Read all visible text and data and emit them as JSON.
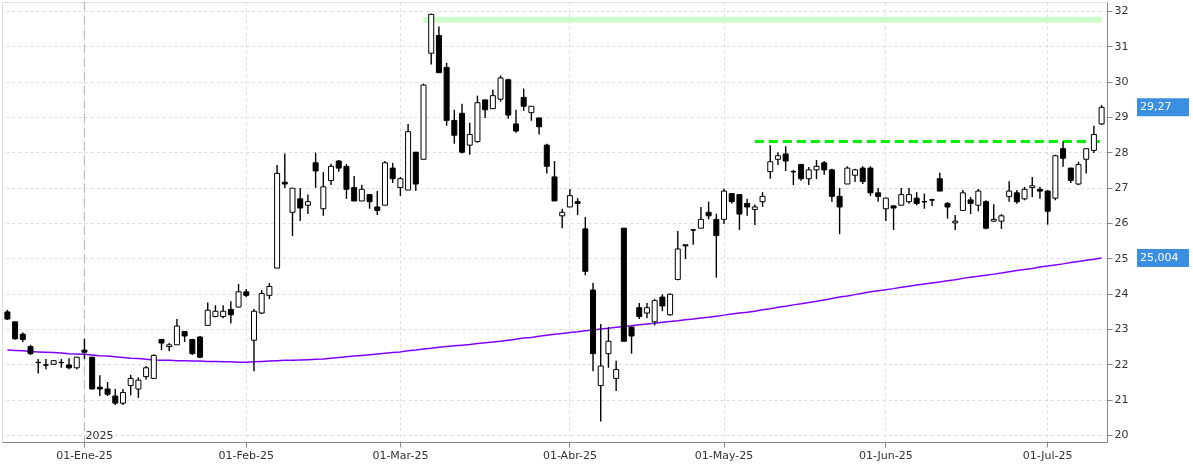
{
  "chart_data": {
    "type": "candlestick",
    "categories": [
      null,
      null,
      null,
      null,
      null,
      null,
      null,
      null,
      null,
      null,
      "01-Ene-25",
      null,
      null,
      null,
      null,
      null,
      null,
      null,
      null,
      null,
      null,
      null,
      null,
      null,
      null,
      null,
      null,
      null,
      null,
      null,
      null,
      "01-Feb-25",
      null,
      null,
      null,
      null,
      null,
      null,
      null,
      null,
      null,
      null,
      null,
      null,
      null,
      null,
      null,
      null,
      null,
      null,
      null,
      "01-Mar-25",
      null,
      null,
      null,
      null,
      null,
      null,
      null,
      null,
      null,
      null,
      null,
      null,
      null,
      null,
      null,
      null,
      null,
      null,
      null,
      null,
      null,
      "01-Abr-25",
      null,
      null,
      null,
      null,
      null,
      null,
      null,
      null,
      null,
      null,
      null,
      null,
      null,
      null,
      null,
      null,
      null,
      null,
      null,
      "01-May-25",
      null,
      null,
      null,
      null,
      null,
      null,
      null,
      null,
      null,
      null,
      null,
      null,
      null,
      null,
      null,
      null,
      null,
      null,
      null,
      null,
      "01-Jun-25",
      null,
      null,
      null,
      null,
      null,
      null,
      null,
      null,
      null,
      null,
      null,
      null,
      null,
      null,
      null,
      null,
      null,
      null,
      null,
      null,
      "01-Jul-25",
      null,
      null,
      null,
      null,
      null,
      null,
      null
    ],
    "ohlc": [
      [
        23.48,
        23.54,
        23.25,
        23.28
      ],
      [
        23.2,
        23.2,
        22.7,
        22.72
      ],
      [
        22.85,
        22.9,
        22.63,
        22.7
      ],
      [
        22.5,
        22.55,
        22.26,
        22.3
      ],
      [
        22.05,
        22.15,
        21.74,
        22.05
      ],
      [
        21.98,
        22.15,
        21.86,
        21.98
      ],
      [
        22.0,
        22.12,
        21.98,
        22.1
      ],
      [
        22.05,
        22.15,
        21.9,
        22.05
      ],
      [
        21.98,
        22.17,
        21.86,
        21.9
      ],
      [
        21.9,
        22.2,
        21.86,
        22.2
      ],
      [
        22.4,
        22.72,
        22.15,
        22.34
      ],
      [
        22.2,
        22.2,
        21.29,
        21.3
      ],
      [
        21.35,
        21.69,
        21.1,
        21.3
      ],
      [
        21.3,
        21.5,
        21.1,
        21.15
      ],
      [
        21.1,
        21.3,
        20.85,
        20.9
      ],
      [
        20.9,
        21.3,
        20.85,
        21.2
      ],
      [
        21.4,
        21.7,
        21.12,
        21.6
      ],
      [
        21.3,
        21.63,
        21.05,
        21.55
      ],
      [
        21.65,
        21.95,
        21.57,
        21.9
      ],
      [
        21.6,
        22.28,
        21.6,
        22.25
      ],
      [
        22.7,
        22.72,
        22.4,
        22.6
      ],
      [
        22.5,
        22.6,
        22.37,
        22.55
      ],
      [
        22.55,
        23.28,
        22.55,
        23.08
      ],
      [
        22.93,
        22.93,
        22.63,
        22.8
      ],
      [
        22.7,
        22.72,
        22.26,
        22.3
      ],
      [
        22.77,
        22.8,
        22.17,
        22.2
      ],
      [
        23.1,
        23.75,
        23.1,
        23.53
      ],
      [
        23.35,
        23.67,
        23.33,
        23.5
      ],
      [
        23.35,
        23.67,
        23.3,
        23.5
      ],
      [
        23.55,
        23.78,
        23.15,
        23.4
      ],
      [
        23.62,
        24.27,
        23.61,
        24.05
      ],
      [
        24.05,
        24.13,
        23.9,
        23.95
      ],
      [
        22.68,
        23.56,
        21.8,
        23.5
      ],
      [
        23.45,
        24.1,
        23.42,
        24.0
      ],
      [
        23.95,
        24.3,
        23.84,
        24.2
      ],
      [
        24.72,
        27.64,
        24.72,
        27.4
      ],
      [
        27.15,
        27.96,
        26.99,
        27.1
      ],
      [
        26.3,
        26.99,
        25.63,
        26.98
      ],
      [
        26.68,
        26.99,
        26.05,
        26.42
      ],
      [
        26.5,
        26.8,
        26.25,
        26.6
      ],
      [
        27.7,
        27.99,
        26.99,
        27.47
      ],
      [
        26.4,
        27.44,
        26.2,
        27.02
      ],
      [
        27.2,
        27.67,
        27.07,
        27.6
      ],
      [
        27.75,
        27.78,
        27.45,
        27.55
      ],
      [
        27.6,
        27.67,
        26.68,
        26.95
      ],
      [
        27.0,
        27.33,
        26.62,
        26.62
      ],
      [
        26.62,
        27.08,
        26.62,
        26.95
      ],
      [
        26.8,
        26.82,
        26.4,
        26.6
      ],
      [
        26.45,
        26.9,
        26.22,
        26.35
      ],
      [
        26.5,
        27.75,
        26.5,
        27.7
      ],
      [
        27.55,
        27.7,
        27.13,
        27.25
      ],
      [
        27.0,
        27.3,
        26.76,
        27.25
      ],
      [
        26.93,
        28.8,
        26.93,
        28.58
      ],
      [
        28.0,
        28.0,
        26.9,
        27.1
      ],
      [
        27.8,
        29.94,
        27.8,
        29.9
      ],
      [
        30.8,
        31.92,
        30.48,
        31.9
      ],
      [
        31.3,
        31.56,
        30.25,
        30.25
      ],
      [
        30.4,
        30.53,
        28.75,
        28.9
      ],
      [
        28.9,
        29.2,
        28.24,
        28.48
      ],
      [
        29.1,
        29.37,
        27.96,
        28.0
      ],
      [
        28.2,
        28.83,
        27.93,
        28.5
      ],
      [
        28.3,
        29.6,
        28.27,
        29.4
      ],
      [
        29.48,
        29.48,
        28.97,
        29.2
      ],
      [
        29.23,
        29.77,
        29.23,
        29.6
      ],
      [
        29.5,
        30.17,
        29.43,
        30.1
      ],
      [
        30.05,
        30.08,
        28.95,
        29.05
      ],
      [
        28.8,
        29.2,
        28.55,
        28.6
      ],
      [
        29.55,
        29.8,
        29.17,
        29.3
      ],
      [
        29.12,
        29.3,
        28.89,
        29.3
      ],
      [
        28.97,
        28.97,
        28.5,
        28.72
      ],
      [
        28.2,
        28.24,
        27.4,
        27.6
      ],
      [
        27.3,
        27.75,
        26.62,
        26.62
      ],
      [
        26.2,
        26.4,
        25.85,
        26.3
      ],
      [
        26.45,
        26.96,
        26.45,
        26.77
      ],
      [
        26.6,
        26.7,
        26.22,
        26.55
      ],
      [
        25.83,
        26.17,
        24.52,
        24.63
      ],
      [
        24.1,
        24.3,
        21.8,
        22.3
      ],
      [
        21.4,
        23.14,
        20.38,
        21.95
      ],
      [
        22.3,
        23.05,
        21.9,
        22.65
      ],
      [
        21.6,
        22.1,
        21.24,
        21.85
      ],
      [
        25.85,
        25.85,
        22.65,
        22.65
      ],
      [
        23.05,
        23.07,
        22.3,
        22.8
      ],
      [
        23.6,
        23.73,
        23.28,
        23.35
      ],
      [
        23.45,
        23.73,
        23.3,
        23.6
      ],
      [
        23.2,
        23.85,
        23.1,
        23.8
      ],
      [
        23.9,
        23.98,
        23.5,
        23.65
      ],
      [
        23.4,
        24.0,
        23.37,
        23.98
      ],
      [
        24.4,
        25.77,
        24.38,
        25.26
      ],
      [
        25.38,
        25.38,
        24.98,
        25.35
      ],
      [
        25.8,
        25.83,
        25.38,
        25.8
      ],
      [
        25.85,
        26.45,
        25.85,
        26.1
      ],
      [
        26.3,
        26.6,
        26.1,
        26.2
      ],
      [
        26.1,
        26.26,
        24.45,
        25.64
      ],
      [
        26.1,
        26.97,
        25.97,
        26.9
      ],
      [
        26.83,
        26.83,
        26.55,
        26.6
      ],
      [
        26.8,
        26.8,
        25.8,
        26.25
      ],
      [
        26.55,
        26.68,
        26.2,
        26.45
      ],
      [
        26.38,
        26.52,
        25.94,
        26.45
      ],
      [
        26.6,
        26.87,
        26.45,
        26.75
      ],
      [
        27.45,
        28.2,
        27.25,
        27.73
      ],
      [
        27.8,
        28.0,
        27.64,
        27.9
      ],
      [
        27.95,
        28.17,
        27.47,
        27.75
      ],
      [
        27.45,
        27.5,
        27.07,
        27.45
      ],
      [
        27.65,
        27.67,
        27.19,
        27.25
      ],
      [
        27.25,
        27.58,
        27.07,
        27.5
      ],
      [
        27.5,
        27.78,
        27.24,
        27.6
      ],
      [
        27.7,
        27.75,
        27.36,
        27.5
      ],
      [
        27.5,
        27.53,
        26.6,
        26.75
      ],
      [
        26.75,
        26.99,
        25.68,
        26.45
      ],
      [
        27.1,
        27.6,
        27.1,
        27.55
      ],
      [
        27.35,
        27.53,
        27.16,
        27.5
      ],
      [
        27.55,
        27.6,
        27.1,
        27.17
      ],
      [
        27.55,
        27.6,
        26.76,
        26.85
      ],
      [
        26.85,
        26.99,
        26.6,
        26.75
      ],
      [
        26.4,
        26.71,
        26.05,
        26.7
      ],
      [
        26.48,
        26.5,
        25.8,
        26.42
      ],
      [
        26.5,
        26.99,
        26.5,
        26.8
      ],
      [
        26.6,
        26.99,
        26.54,
        26.8
      ],
      [
        26.7,
        26.87,
        26.5,
        26.55
      ],
      [
        26.6,
        26.83,
        26.4,
        26.6
      ],
      [
        26.65,
        26.68,
        26.48,
        26.65
      ],
      [
        27.25,
        27.42,
        26.9,
        26.9
      ],
      [
        26.55,
        26.59,
        26.12,
        26.45
      ],
      [
        26.0,
        26.22,
        25.8,
        26.05
      ],
      [
        26.35,
        26.93,
        26.35,
        26.85
      ],
      [
        26.65,
        26.73,
        26.25,
        26.55
      ],
      [
        26.5,
        26.96,
        26.33,
        26.9
      ],
      [
        26.6,
        26.64,
        25.82,
        25.85
      ],
      [
        26.05,
        26.53,
        26.03,
        26.1
      ],
      [
        26.05,
        26.25,
        25.83,
        26.2
      ],
      [
        26.75,
        27.18,
        26.6,
        26.9
      ],
      [
        26.85,
        26.93,
        26.54,
        26.6
      ],
      [
        26.68,
        27.02,
        26.64,
        26.95
      ],
      [
        27.0,
        27.3,
        26.73,
        27.05
      ],
      [
        26.95,
        27.02,
        26.68,
        26.9
      ],
      [
        26.9,
        26.93,
        25.95,
        26.33
      ],
      [
        26.7,
        27.93,
        26.64,
        27.9
      ],
      [
        28.1,
        28.3,
        27.59,
        27.83
      ],
      [
        27.55,
        27.56,
        27.13,
        27.2
      ],
      [
        27.1,
        27.73,
        27.07,
        27.65
      ],
      [
        27.8,
        28.1,
        27.4,
        28.1
      ],
      [
        28.05,
        28.75,
        27.98,
        28.5
      ],
      [
        28.8,
        29.33,
        28.77,
        29.27
      ]
    ],
    "color": "#000000",
    "series": [
      {
        "type": "line",
        "color": "#8000ff",
        "line_style": "solid",
        "values": [
          22.4,
          22.39,
          22.38,
          22.36,
          22.35,
          22.34,
          22.33,
          22.32,
          22.3,
          22.29,
          22.28,
          22.26,
          22.24,
          22.23,
          22.21,
          22.19,
          22.17,
          22.16,
          22.14,
          22.12,
          22.11,
          22.11,
          22.1,
          22.1,
          22.09,
          22.09,
          22.08,
          22.08,
          22.07,
          22.07,
          22.06,
          22.06,
          22.07,
          22.08,
          22.09,
          22.1,
          22.11,
          22.11,
          22.12,
          22.13,
          22.14,
          22.15,
          22.17,
          22.19,
          22.21,
          22.23,
          22.25,
          22.27,
          22.29,
          22.31,
          22.33,
          22.35,
          22.38,
          22.4,
          22.43,
          22.45,
          22.48,
          22.5,
          22.52,
          22.54,
          22.56,
          22.59,
          22.61,
          22.63,
          22.65,
          22.68,
          22.71,
          22.74,
          22.76,
          22.79,
          22.82,
          22.85,
          22.87,
          22.9,
          22.92,
          22.95,
          22.97,
          23.0,
          23.02,
          23.05,
          23.07,
          23.09,
          23.12,
          23.14,
          23.16,
          23.19,
          23.21,
          23.23,
          23.26,
          23.28,
          23.31,
          23.33,
          23.36,
          23.39,
          23.42,
          23.45,
          23.47,
          23.5,
          23.54,
          23.57,
          23.61,
          23.64,
          23.68,
          23.71,
          23.75,
          23.78,
          23.82,
          23.86,
          23.9,
          23.93,
          23.97,
          24.01,
          24.05,
          24.08,
          24.11,
          24.14,
          24.18,
          24.21,
          24.24,
          24.27,
          24.3,
          24.33,
          24.36,
          24.39,
          24.43,
          24.46,
          24.49,
          24.52,
          24.55,
          24.58,
          24.62,
          24.65,
          24.68,
          24.71,
          24.75,
          24.78,
          24.81,
          24.84,
          24.88,
          24.91,
          24.94,
          24.97,
          25.004
        ]
      },
      {
        "type": "line",
        "color": "#ccffcc",
        "line_style": "solid",
        "values": [
          null,
          null,
          null,
          null,
          null,
          null,
          null,
          null,
          null,
          null,
          null,
          null,
          null,
          null,
          null,
          null,
          null,
          null,
          null,
          null,
          null,
          null,
          null,
          null,
          null,
          null,
          null,
          null,
          null,
          null,
          null,
          null,
          null,
          null,
          null,
          null,
          null,
          null,
          null,
          null,
          null,
          null,
          null,
          null,
          null,
          null,
          null,
          null,
          null,
          null,
          null,
          null,
          null,
          null,
          31.75,
          31.75,
          31.75,
          31.75,
          31.75,
          31.75,
          31.75,
          31.75,
          31.75,
          31.75,
          31.75,
          31.75,
          31.75,
          31.75,
          31.75,
          31.75,
          31.75,
          31.75,
          31.75,
          31.75,
          31.75,
          31.75,
          31.75,
          31.75,
          31.75,
          31.75,
          31.75,
          31.75,
          31.75,
          31.75,
          31.75,
          31.75,
          31.75,
          31.75,
          31.75,
          31.75,
          31.75,
          31.75,
          31.75,
          31.75,
          31.75,
          31.75,
          31.75,
          31.75,
          31.75,
          31.75,
          31.75,
          31.75,
          31.75,
          31.75,
          31.75,
          31.75,
          31.75,
          31.75,
          31.75,
          31.75,
          31.75,
          31.75,
          31.75,
          31.75,
          31.75,
          31.75,
          31.75,
          31.75,
          31.75,
          31.75,
          31.75,
          31.75,
          31.75,
          31.75,
          31.75,
          31.75,
          31.75,
          31.75,
          31.75,
          31.75,
          31.75,
          31.75,
          31.75,
          31.75,
          31.75,
          31.75,
          31.75,
          31.75,
          31.75,
          31.75,
          31.75,
          31.75,
          31.75
        ]
      },
      {
        "type": "line",
        "color": "#00ee00",
        "line_style": "dashed",
        "values": [
          null,
          null,
          null,
          null,
          null,
          null,
          null,
          null,
          null,
          null,
          null,
          null,
          null,
          null,
          null,
          null,
          null,
          null,
          null,
          null,
          null,
          null,
          null,
          null,
          null,
          null,
          null,
          null,
          null,
          null,
          null,
          null,
          null,
          null,
          null,
          null,
          null,
          null,
          null,
          null,
          null,
          null,
          null,
          null,
          null,
          null,
          null,
          null,
          null,
          null,
          null,
          null,
          null,
          null,
          null,
          null,
          null,
          null,
          null,
          null,
          null,
          null,
          null,
          null,
          null,
          null,
          null,
          null,
          null,
          null,
          null,
          null,
          null,
          null,
          null,
          null,
          null,
          null,
          null,
          null,
          null,
          null,
          null,
          null,
          null,
          null,
          null,
          null,
          null,
          null,
          null,
          null,
          null,
          null,
          null,
          null,
          null,
          28.3,
          28.3,
          28.3,
          28.3,
          28.3,
          28.3,
          28.3,
          28.3,
          28.3,
          28.3,
          28.3,
          28.3,
          28.3,
          28.3,
          28.3,
          28.3,
          28.3,
          28.3,
          28.3,
          28.3,
          28.3,
          28.3,
          28.3,
          28.3,
          28.3,
          28.3,
          28.3,
          28.3,
          28.3,
          28.3,
          28.3,
          28.3,
          28.3,
          28.3,
          28.3,
          28.3,
          28.3,
          28.3,
          28.3,
          28.3,
          28.3,
          28.3,
          28.3,
          28.3,
          28.3,
          28.3
        ]
      }
    ],
    "ylim": [
      19.8,
      32.25
    ],
    "yticks": [
      20,
      21,
      22,
      23,
      24,
      25,
      26,
      27,
      28,
      29,
      30,
      31,
      32
    ],
    "grid": true,
    "ref_lines": [
      {
        "axis": "x",
        "value": "01-Ene-25",
        "label": "2025",
        "color": "#bbbbbb",
        "line_style": "dashed"
      }
    ],
    "annotations": [
      "29,27",
      "25,004"
    ]
  }
}
